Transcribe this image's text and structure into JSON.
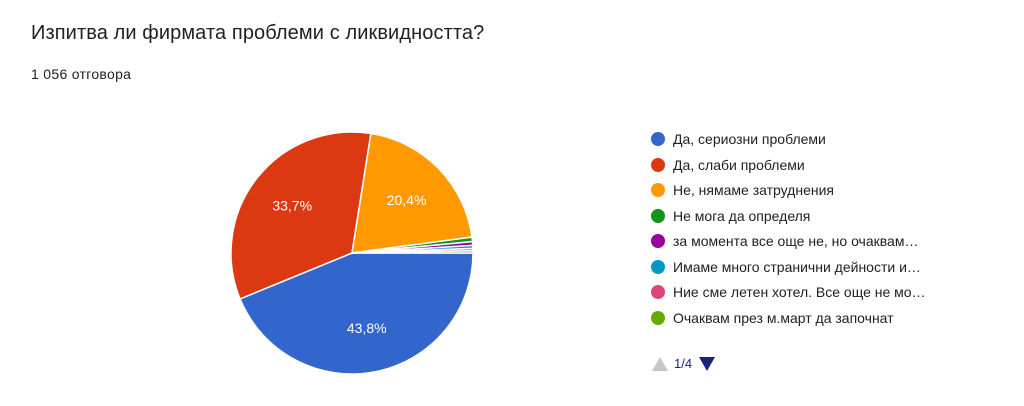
{
  "question": {
    "title": "Изпитва ли фирмата проблеми с ликвидността?",
    "responses": "1 056 отговора"
  },
  "chart_data": {
    "type": "pie",
    "title": "Изпитва ли фирмата проблеми с ликвидността?",
    "slices": [
      {
        "label": "Да, сериозни проблеми",
        "value": 43.8,
        "display": "43,8%",
        "color": "#3366cc"
      },
      {
        "label": "Да, слаби проблеми",
        "value": 33.7,
        "display": "33,7%",
        "color": "#dc3912"
      },
      {
        "label": "Не, нямаме затруднения",
        "value": 20.4,
        "display": "20,4%",
        "color": "#ff9900"
      },
      {
        "label": "Не мога да определя",
        "value": 0.6,
        "display": "",
        "color": "#109618"
      },
      {
        "label": "за момента все още не, но очаквам…",
        "value": 0.5,
        "display": "",
        "color": "#990099"
      },
      {
        "label": "Имаме много странични дейности и…",
        "value": 0.4,
        "display": "",
        "color": "#0099c6"
      },
      {
        "label": "Ние сме летен хотел. Все още не мо…",
        "value": 0.3,
        "display": "",
        "color": "#dd4477"
      },
      {
        "label": "Очаквам през м.март да започнат",
        "value": 0.3,
        "display": "",
        "color": "#66aa00"
      }
    ],
    "legend_position": "right"
  },
  "pager": {
    "text": "1/4"
  }
}
